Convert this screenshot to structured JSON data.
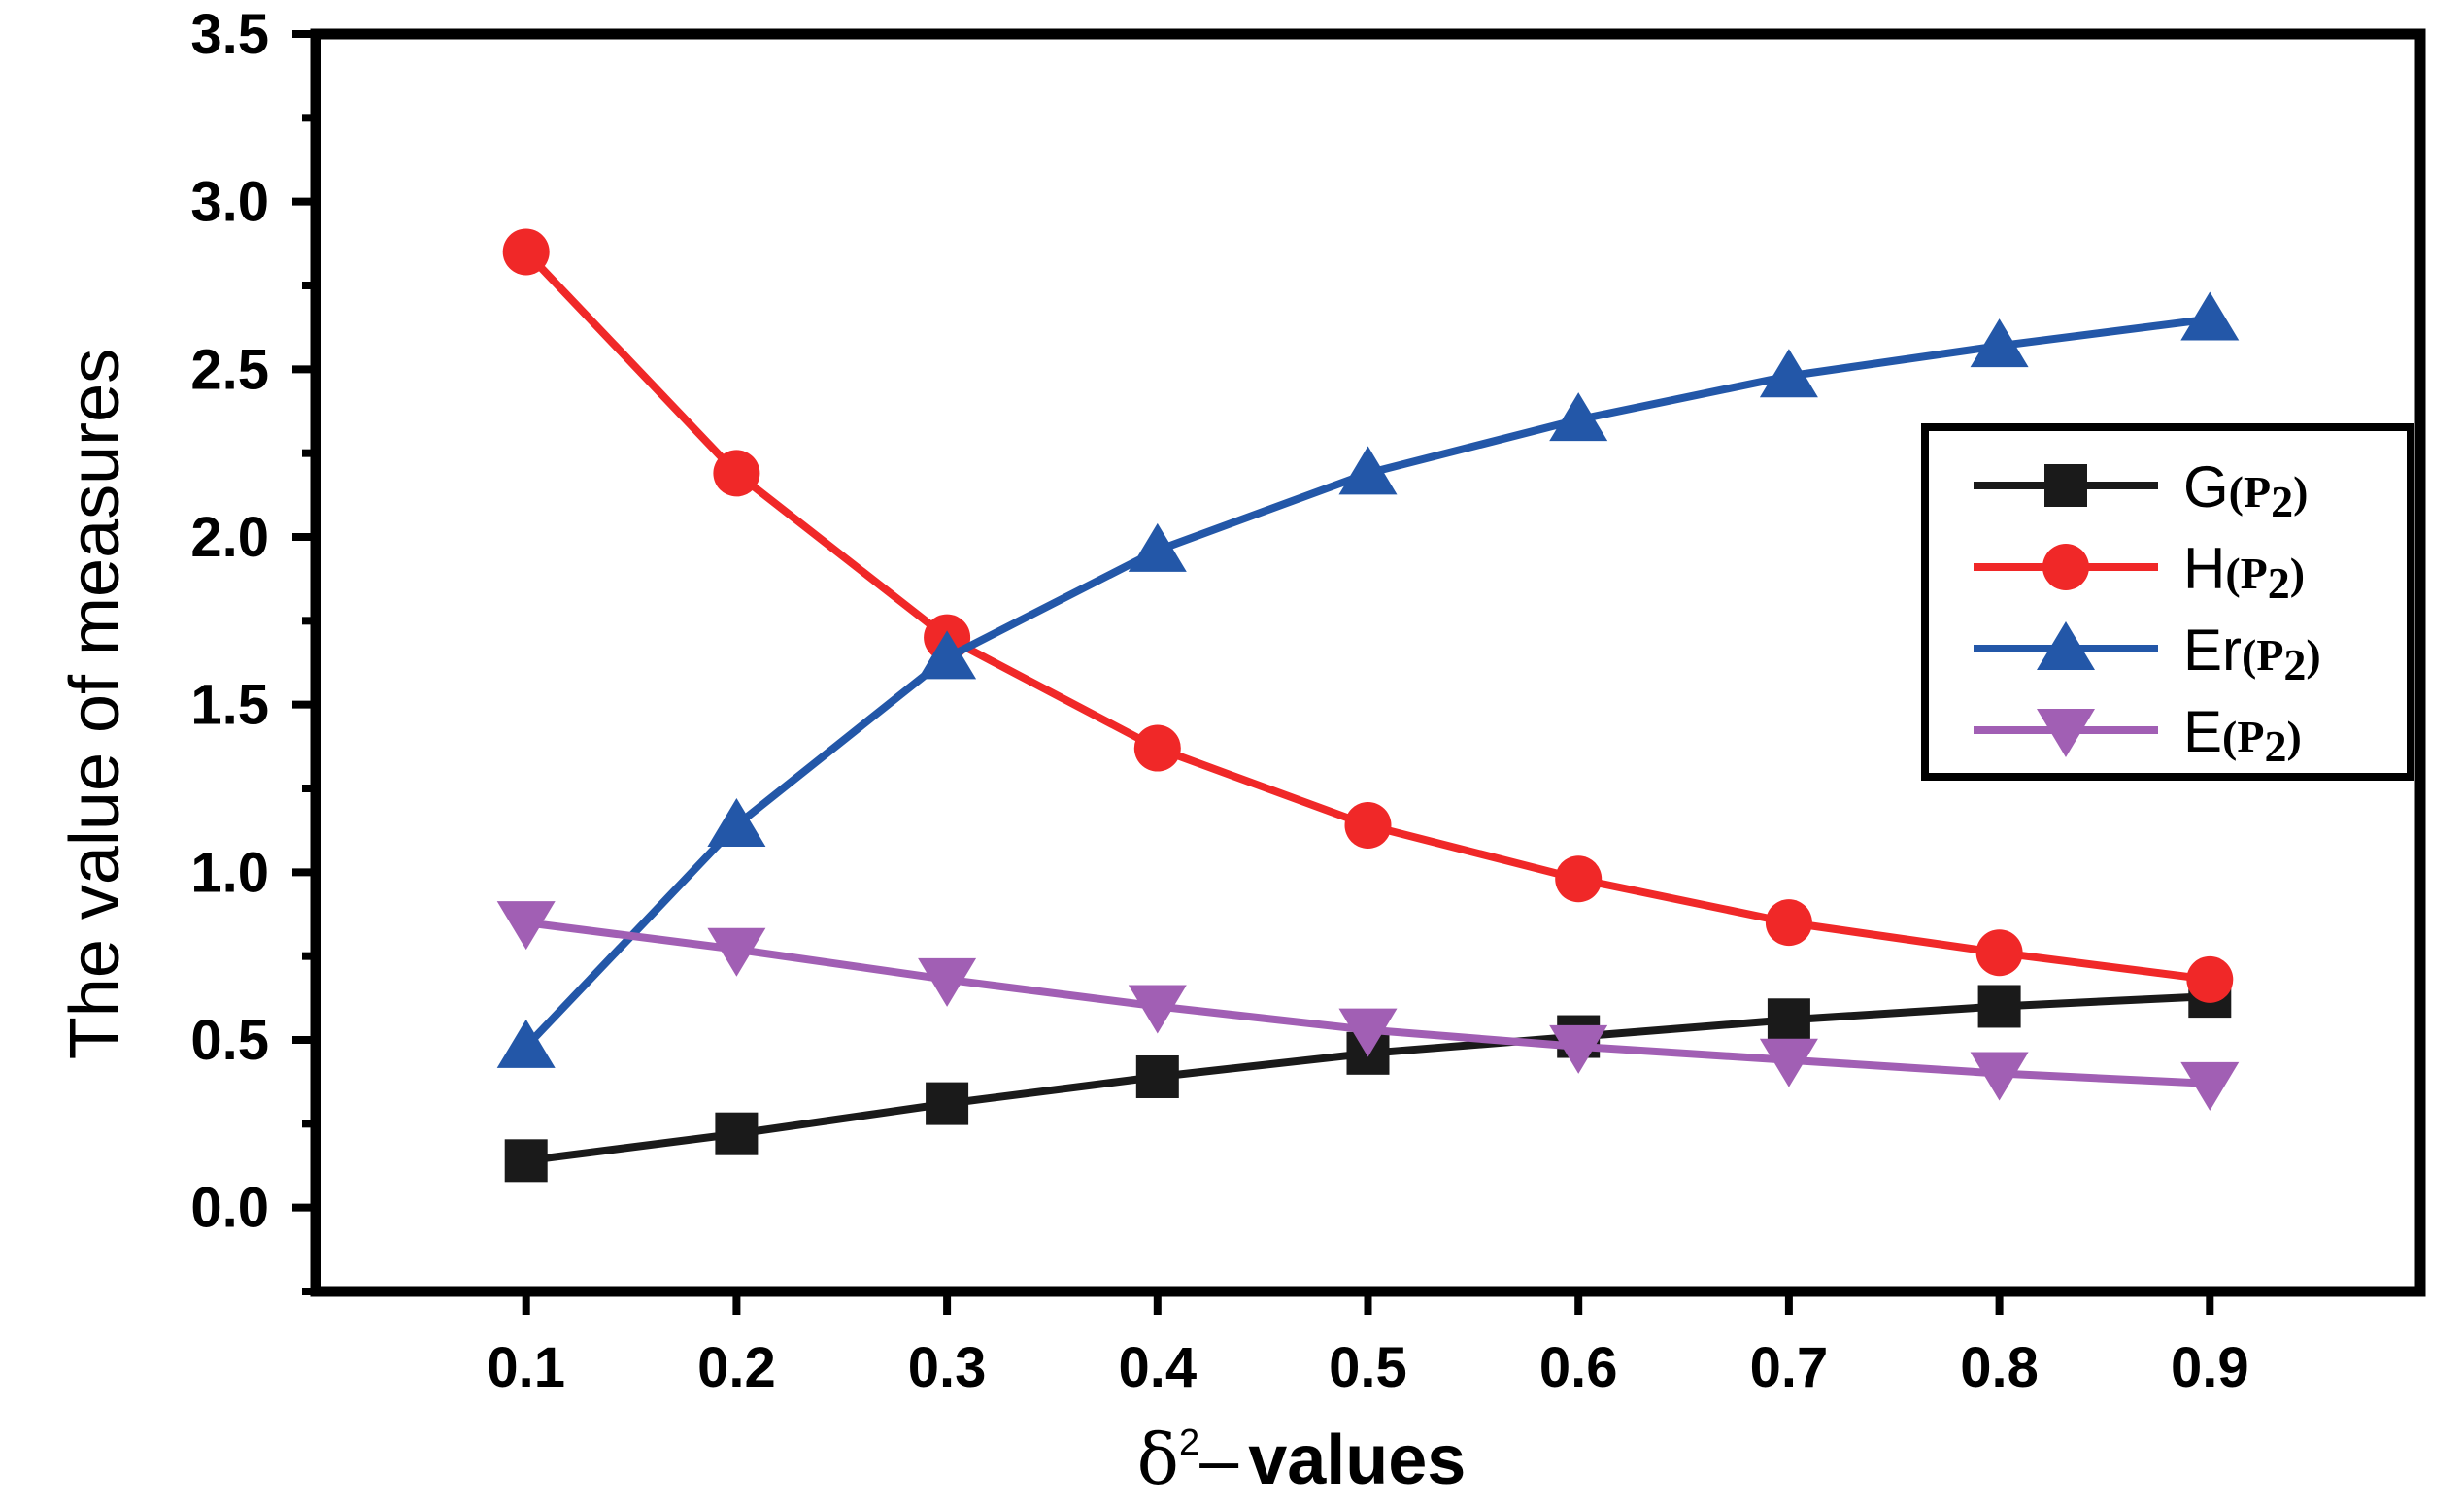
{
  "chart_data": {
    "type": "line",
    "title": "",
    "xlabel_symbol": "δ",
    "xlabel_superscript": "2",
    "xlabel_dash": "–",
    "xlabel_text": "values",
    "ylabel": "The value of measures",
    "x": [
      0.1,
      0.2,
      0.3,
      0.4,
      0.5,
      0.6,
      0.7,
      0.8,
      0.9
    ],
    "x_tick_labels": [
      "0.1",
      "0.2",
      "0.3",
      "0.4",
      "0.5",
      "0.6",
      "0.7",
      "0.8",
      "0.9"
    ],
    "xlim": [
      0.0,
      1.0
    ],
    "ylim": [
      -0.25,
      3.5
    ],
    "y_ticks": [
      0.0,
      0.5,
      1.0,
      1.5,
      2.0,
      2.5,
      3.0,
      3.5
    ],
    "y_tick_labels": [
      "0.0",
      "0.5",
      "1.0",
      "1.5",
      "2.0",
      "2.5",
      "3.0",
      "3.5"
    ],
    "grid": false,
    "legend_position": "right",
    "series": [
      {
        "name": "G",
        "label_main": "G",
        "label_sub": "(P",
        "label_sub_index": "2",
        "label_close": ")",
        "color": "#1a1a1a",
        "marker": "square",
        "values": [
          0.14,
          0.22,
          0.31,
          0.39,
          0.46,
          0.51,
          0.56,
          0.6,
          0.63
        ]
      },
      {
        "name": "H",
        "label_main": "H",
        "label_sub": "(P",
        "label_sub_index": "2",
        "label_close": ")",
        "color": "#f02828",
        "marker": "circle",
        "values": [
          2.85,
          2.19,
          1.7,
          1.37,
          1.14,
          0.98,
          0.85,
          0.76,
          0.68
        ]
      },
      {
        "name": "Er",
        "label_main": "Er",
        "label_sub": "(P",
        "label_sub_index": "2",
        "label_close": ")",
        "color": "#2357a8",
        "marker": "triangle-up",
        "values": [
          0.48,
          1.14,
          1.64,
          1.96,
          2.19,
          2.35,
          2.48,
          2.57,
          2.65
        ]
      },
      {
        "name": "E",
        "label_main": "E",
        "label_sub": "(P",
        "label_sub_index": "2",
        "label_close": ")",
        "color": "#a15fb4",
        "marker": "triangle-down",
        "values": [
          0.85,
          0.77,
          0.68,
          0.6,
          0.53,
          0.48,
          0.44,
          0.4,
          0.37
        ]
      }
    ]
  }
}
